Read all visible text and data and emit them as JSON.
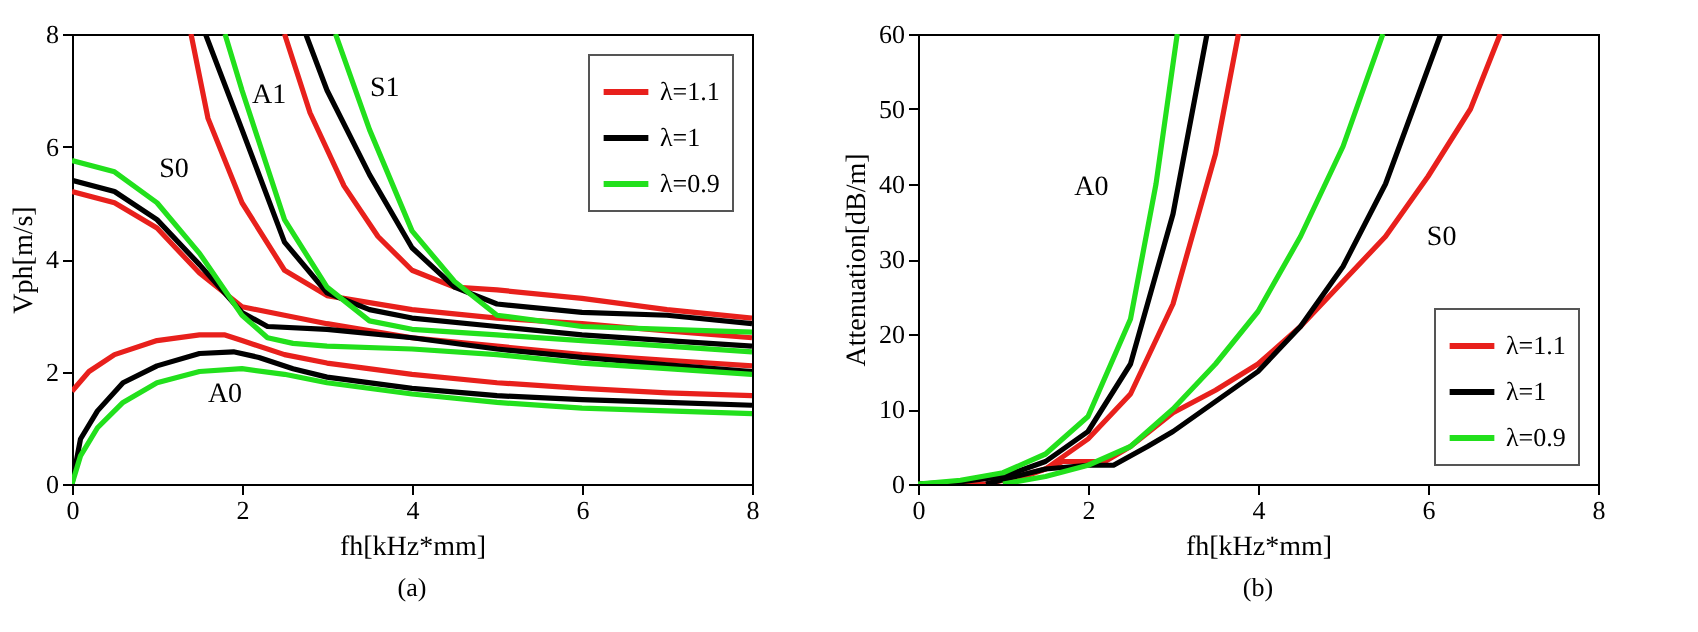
{
  "chart_data": [
    {
      "type": "line",
      "xlabel": "fh[kHz*mm]",
      "ylabel": "Vph[m/s]",
      "xlim": [
        0,
        8
      ],
      "ylim": [
        0,
        8
      ],
      "xticks": [
        0,
        2,
        4,
        6,
        8
      ],
      "yticks": [
        0,
        2,
        4,
        6,
        8
      ],
      "grid": false,
      "legend": "top right",
      "line_style": "solid",
      "annotations": [
        "S0",
        "A1",
        "S1",
        "A0",
        "(a)"
      ],
      "series": [
        {
          "name": "λ=1.1",
          "color": "#e8201c",
          "x": [
            0,
            0.2,
            0.5,
            1,
            1.5,
            1.8,
            2,
            2.5,
            3,
            4,
            5,
            6,
            7,
            8
          ],
          "values": [
            1.65,
            2.0,
            2.3,
            2.55,
            2.65,
            2.65,
            2.55,
            2.3,
            2.15,
            1.95,
            1.8,
            1.7,
            1.62,
            1.57
          ]
        },
        {
          "name": "λ=1",
          "color": "#000000",
          "x": [
            0,
            0.1,
            0.3,
            0.6,
            1,
            1.5,
            1.9,
            2.2,
            2.6,
            3,
            4,
            5,
            6,
            7,
            8
          ],
          "values": [
            0,
            0.8,
            1.3,
            1.8,
            2.1,
            2.32,
            2.35,
            2.25,
            2.05,
            1.9,
            1.7,
            1.57,
            1.5,
            1.45,
            1.4
          ]
        },
        {
          "name": "λ=0.9",
          "color": "#22e01c",
          "x": [
            0,
            0.1,
            0.3,
            0.6,
            1,
            1.5,
            2,
            2.5,
            3,
            4,
            5,
            6,
            7,
            8
          ],
          "values": [
            0,
            0.5,
            1.0,
            1.45,
            1.8,
            2.0,
            2.05,
            1.95,
            1.8,
            1.6,
            1.45,
            1.35,
            1.3,
            1.25
          ]
        },
        {
          "color": "#e8201c",
          "x": [
            0,
            0.5,
            1,
            1.5,
            2,
            2.5,
            3,
            4,
            5,
            6,
            7,
            8
          ],
          "values": [
            5.2,
            5.0,
            4.55,
            3.75,
            3.15,
            3.0,
            2.85,
            2.6,
            2.45,
            2.3,
            2.2,
            2.1
          ]
        },
        {
          "color": "#000000",
          "x": [
            0,
            0.5,
            1,
            1.5,
            2,
            2.3,
            3,
            4,
            5,
            6,
            7,
            8
          ],
          "values": [
            5.4,
            5.2,
            4.7,
            3.9,
            3.05,
            2.8,
            2.75,
            2.6,
            2.4,
            2.25,
            2.12,
            2.0
          ]
        },
        {
          "color": "#22e01c",
          "x": [
            0,
            0.5,
            1,
            1.5,
            2,
            2.3,
            2.6,
            3,
            4,
            5,
            6,
            7,
            8
          ],
          "values": [
            5.75,
            5.55,
            5.0,
            4.1,
            3.0,
            2.6,
            2.5,
            2.45,
            2.4,
            2.3,
            2.15,
            2.05,
            1.95
          ]
        },
        {
          "color": "#e8201c",
          "x": [
            1.4,
            1.6,
            2,
            2.5,
            3,
            4,
            5,
            6,
            7,
            8
          ],
          "values": [
            8,
            6.5,
            5.0,
            3.8,
            3.35,
            3.1,
            2.95,
            2.85,
            2.72,
            2.6
          ]
        },
        {
          "color": "#000000",
          "x": [
            1.57,
            2,
            2.5,
            3,
            3.5,
            4,
            5,
            6,
            7,
            8
          ],
          "values": [
            8,
            6.3,
            4.3,
            3.4,
            3.1,
            2.95,
            2.8,
            2.65,
            2.55,
            2.45
          ]
        },
        {
          "color": "#22e01c",
          "x": [
            1.8,
            2,
            2.5,
            3,
            3.5,
            4,
            5,
            6,
            7,
            8
          ],
          "values": [
            8,
            7.0,
            4.7,
            3.5,
            2.9,
            2.75,
            2.65,
            2.55,
            2.45,
            2.35
          ]
        },
        {
          "color": "#e8201c",
          "x": [
            2.5,
            2.8,
            3.2,
            3.6,
            4,
            4.5,
            5,
            6,
            7,
            8
          ],
          "values": [
            8,
            6.6,
            5.3,
            4.4,
            3.8,
            3.5,
            3.45,
            3.3,
            3.1,
            2.95
          ]
        },
        {
          "color": "#000000",
          "x": [
            2.75,
            3,
            3.5,
            4,
            4.5,
            5,
            6,
            7,
            8
          ],
          "values": [
            8,
            7.0,
            5.5,
            4.2,
            3.5,
            3.2,
            3.05,
            3.0,
            2.85
          ]
        },
        {
          "color": "#22e01c",
          "x": [
            3.1,
            3.5,
            4,
            4.5,
            5,
            6,
            7,
            8
          ],
          "values": [
            8,
            6.3,
            4.5,
            3.6,
            3.0,
            2.8,
            2.75,
            2.7
          ]
        }
      ]
    },
    {
      "type": "line",
      "xlabel": "fh[kHz*mm]",
      "ylabel": "Attenuation[dB/m]",
      "xlim": [
        0,
        8
      ],
      "ylim": [
        0,
        60
      ],
      "xticks": [
        0,
        2,
        4,
        6,
        8
      ],
      "yticks": [
        0,
        10,
        20,
        30,
        40,
        50,
        60
      ],
      "grid": false,
      "legend": "bottom right",
      "line_style": "solid",
      "annotations": [
        "A0",
        "S0",
        "(b)"
      ],
      "series": [
        {
          "name": "λ=1.1",
          "color": "#e8201c",
          "x": [
            0,
            0.8,
            1,
            1.5,
            2,
            2.5,
            3,
            3.5,
            3.77
          ],
          "values": [
            0,
            0,
            0.5,
            2,
            6,
            12,
            24,
            44,
            60
          ]
        },
        {
          "name": "λ=1",
          "color": "#000000",
          "x": [
            0,
            0.5,
            1,
            1.5,
            2,
            2.5,
            3,
            3.4
          ],
          "values": [
            0,
            0.3,
            1,
            3,
            7,
            16,
            36,
            60
          ]
        },
        {
          "name": "λ=0.9",
          "color": "#22e01c",
          "x": [
            0,
            0.5,
            1,
            1.5,
            2,
            2.5,
            2.8,
            3.05
          ],
          "values": [
            0,
            0.5,
            1.5,
            4,
            9,
            22,
            40,
            60
          ]
        },
        {
          "color": "#e8201c",
          "x": [
            1,
            1.5,
            1.7,
            2.2,
            2.5,
            3,
            3.5,
            4,
            4.5,
            5,
            5.5,
            6,
            6.5,
            6.85
          ],
          "values": [
            0,
            2,
            3,
            3,
            5,
            9.5,
            12.5,
            16,
            21,
            27,
            33,
            41,
            50,
            60
          ]
        },
        {
          "color": "#000000",
          "x": [
            0.8,
            1.5,
            2,
            2.3,
            2.7,
            3,
            3.5,
            4,
            4.5,
            5,
            5.5,
            6.15
          ],
          "values": [
            0,
            2,
            2.5,
            2.5,
            5,
            7,
            11,
            15,
            21,
            29,
            40,
            60
          ]
        },
        {
          "color": "#22e01c",
          "x": [
            1,
            1.5,
            2,
            2.5,
            3,
            3.5,
            4,
            4.5,
            5,
            5.47
          ],
          "values": [
            0,
            1,
            2.5,
            5,
            10,
            16,
            23,
            33,
            45,
            60
          ]
        }
      ]
    }
  ]
}
